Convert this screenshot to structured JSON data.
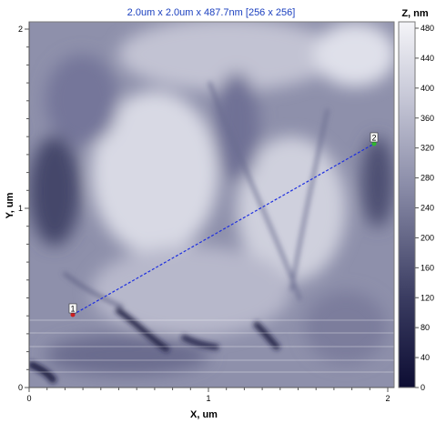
{
  "title": "2.0um x 2.0um x 487.7nm [256 x 256]",
  "colorbar": {
    "label": "Z, nm",
    "ticks": [
      "0",
      "40",
      "80",
      "120",
      "160",
      "200",
      "240",
      "280",
      "320",
      "360",
      "400",
      "440",
      "480"
    ]
  },
  "x_axis": {
    "label": "X, um",
    "ticks": [
      "0",
      "1",
      "2"
    ]
  },
  "y_axis": {
    "label": "Y, um",
    "ticks": [
      "0",
      "1",
      "2"
    ]
  },
  "profile_line": {
    "start_marker": "1",
    "end_marker": "2"
  },
  "colors": {
    "title": "#1a3fbf",
    "profile_line": "#1e2fe0",
    "marker_1": "#cc1f1f",
    "marker_2": "#2fb52f",
    "map_low": "#0d0d33",
    "map_mid": "#8a8ca8",
    "map_high": "#f4f4f8"
  }
}
